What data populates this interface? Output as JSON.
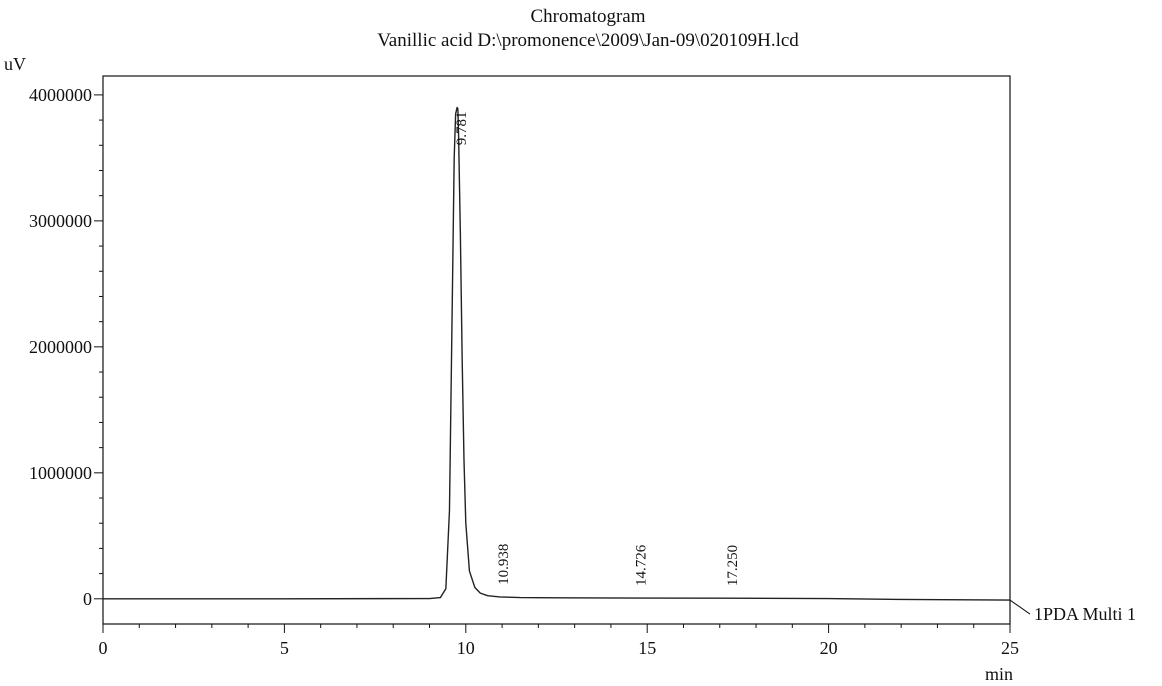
{
  "chart_data": {
    "type": "line",
    "title": "Chromatogram",
    "subtitle": "Vanillic acid D:\\promonence\\2009\\Jan-09\\020109H.lcd",
    "xlabel": "min",
    "ylabel": "uV",
    "xlim": [
      0,
      25
    ],
    "ylim": [
      -200000,
      4150000
    ],
    "x_ticks": [
      0,
      5,
      10,
      15,
      20,
      25
    ],
    "y_ticks": [
      0,
      1000000,
      2000000,
      3000000,
      4000000
    ],
    "x_tick_labels": [
      "0",
      "5",
      "10",
      "15",
      "20",
      "25"
    ],
    "y_tick_labels": [
      "0",
      "1000000",
      "2000000",
      "3000000",
      "4000000"
    ],
    "grid": false,
    "series": [
      {
        "name": "1PDA Multi 1",
        "color": "#222222",
        "x": [
          0,
          5,
          9.0,
          9.3,
          9.45,
          9.55,
          9.62,
          9.68,
          9.72,
          9.76,
          9.781,
          9.8,
          9.85,
          9.9,
          9.95,
          10.0,
          10.1,
          10.25,
          10.4,
          10.6,
          10.938,
          11.5,
          12.5,
          14.726,
          17.25,
          20,
          22,
          25
        ],
        "y": [
          0,
          0,
          2000,
          10000,
          80000,
          700000,
          2200000,
          3500000,
          3850000,
          3900000,
          3890000,
          3700000,
          2900000,
          1900000,
          1100000,
          600000,
          220000,
          90000,
          45000,
          25000,
          15000,
          10000,
          8000,
          6000,
          5000,
          2000,
          -5000,
          -10000
        ]
      }
    ],
    "peaks": [
      {
        "rt": 9.781,
        "label": "9.781",
        "y": 3900000
      },
      {
        "rt": 10.938,
        "label": "10.938",
        "y": 15000
      },
      {
        "rt": 14.726,
        "label": "14.726",
        "y": 6000
      },
      {
        "rt": 17.25,
        "label": "17.250",
        "y": 5000
      }
    ]
  }
}
